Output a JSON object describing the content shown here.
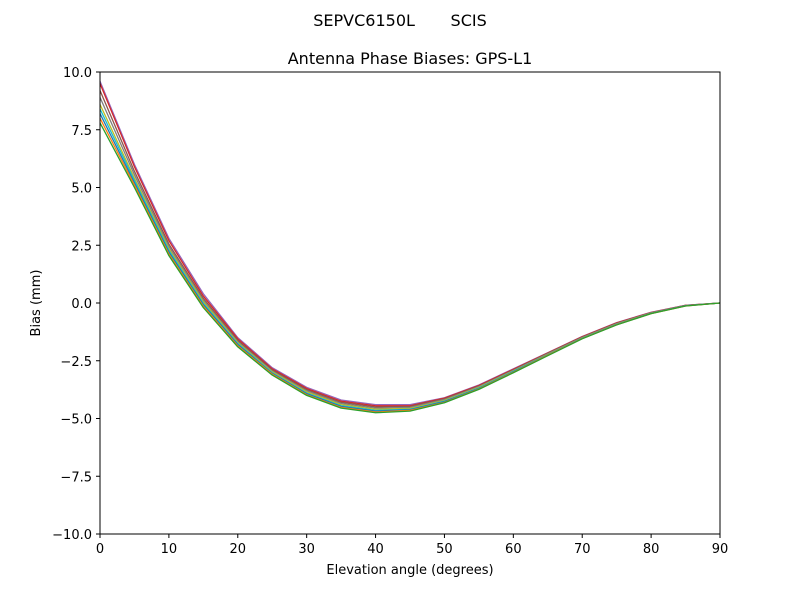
{
  "figure": {
    "suptitle": "SEPVC6150L       SCIS"
  },
  "chart_data": {
    "type": "line",
    "title": "Antenna Phase Biases: GPS-L1",
    "xlabel": "Elevation angle (degrees)",
    "ylabel": "Bias (mm)",
    "xlim": [
      0,
      90
    ],
    "ylim": [
      -10,
      10
    ],
    "x_ticks": [
      0,
      10,
      20,
      30,
      40,
      50,
      60,
      70,
      80,
      90
    ],
    "x_tick_labels": [
      "0",
      "10",
      "20",
      "30",
      "40",
      "50",
      "60",
      "70",
      "80",
      "90"
    ],
    "y_ticks": [
      10,
      7.5,
      5,
      2.5,
      0,
      -2.5,
      -5,
      -7.5,
      -10
    ],
    "y_tick_labels": [
      "10.0",
      "7.5",
      "5.0",
      "2.5",
      "0.0",
      "−2.5",
      "−5.0",
      "−7.5",
      "−10.0"
    ],
    "grid": false,
    "x": [
      0,
      5,
      10,
      15,
      20,
      25,
      30,
      35,
      40,
      45,
      50,
      55,
      60,
      65,
      70,
      75,
      80,
      85,
      90
    ],
    "series": [
      {
        "color": "#9467bd",
        "values": [
          9.6,
          6.0,
          2.8,
          0.4,
          -1.5,
          -2.8,
          -3.65,
          -4.2,
          -4.4,
          -4.4,
          -4.1,
          -3.55,
          -2.85,
          -2.15,
          -1.45,
          -0.85,
          -0.4,
          -0.1,
          0.0
        ]
      },
      {
        "color": "#d62728",
        "values": [
          9.5,
          5.9,
          2.7,
          0.3,
          -1.55,
          -2.85,
          -3.7,
          -4.25,
          -4.45,
          -4.45,
          -4.12,
          -3.57,
          -2.87,
          -2.16,
          -1.46,
          -0.86,
          -0.41,
          -0.1,
          0.0
        ]
      },
      {
        "color": "#8c564b",
        "values": [
          9.2,
          5.7,
          2.55,
          0.2,
          -1.62,
          -2.9,
          -3.75,
          -4.3,
          -4.5,
          -4.48,
          -4.15,
          -3.6,
          -2.9,
          -2.18,
          -1.48,
          -0.88,
          -0.42,
          -0.11,
          0.0
        ]
      },
      {
        "color": "#7f7f7f",
        "values": [
          8.9,
          5.55,
          2.45,
          0.12,
          -1.68,
          -2.95,
          -3.8,
          -4.35,
          -4.55,
          -4.52,
          -4.18,
          -3.62,
          -2.92,
          -2.2,
          -1.5,
          -0.9,
          -0.43,
          -0.11,
          0.0
        ]
      },
      {
        "color": "#bcbd22",
        "values": [
          8.6,
          5.4,
          2.35,
          0.05,
          -1.72,
          -2.98,
          -3.85,
          -4.4,
          -4.6,
          -4.56,
          -4.22,
          -3.65,
          -2.94,
          -2.22,
          -1.51,
          -0.91,
          -0.44,
          -0.12,
          0.0
        ]
      },
      {
        "color": "#17becf",
        "values": [
          8.4,
          5.3,
          2.28,
          -0.02,
          -1.76,
          -3.02,
          -3.9,
          -4.45,
          -4.65,
          -4.6,
          -4.25,
          -3.68,
          -2.96,
          -2.24,
          -1.52,
          -0.92,
          -0.45,
          -0.12,
          0.0
        ]
      },
      {
        "color": "#1f77b4",
        "values": [
          8.2,
          5.2,
          2.2,
          -0.08,
          -1.8,
          -3.05,
          -3.93,
          -4.48,
          -4.68,
          -4.62,
          -4.27,
          -3.7,
          -2.98,
          -2.25,
          -1.53,
          -0.93,
          -0.45,
          -0.12,
          0.0
        ]
      },
      {
        "color": "#ff7f0e",
        "values": [
          8.0,
          5.1,
          2.12,
          -0.14,
          -1.85,
          -3.08,
          -3.97,
          -4.52,
          -4.72,
          -4.65,
          -4.3,
          -3.72,
          -3.0,
          -2.26,
          -1.54,
          -0.94,
          -0.46,
          -0.13,
          0.0
        ]
      },
      {
        "color": "#2ca02c",
        "values": [
          7.8,
          5.0,
          2.05,
          -0.2,
          -1.9,
          -3.12,
          -4.0,
          -4.55,
          -4.75,
          -4.68,
          -4.32,
          -3.74,
          -3.02,
          -2.28,
          -1.55,
          -0.95,
          -0.46,
          -0.13,
          0.0
        ]
      }
    ]
  }
}
